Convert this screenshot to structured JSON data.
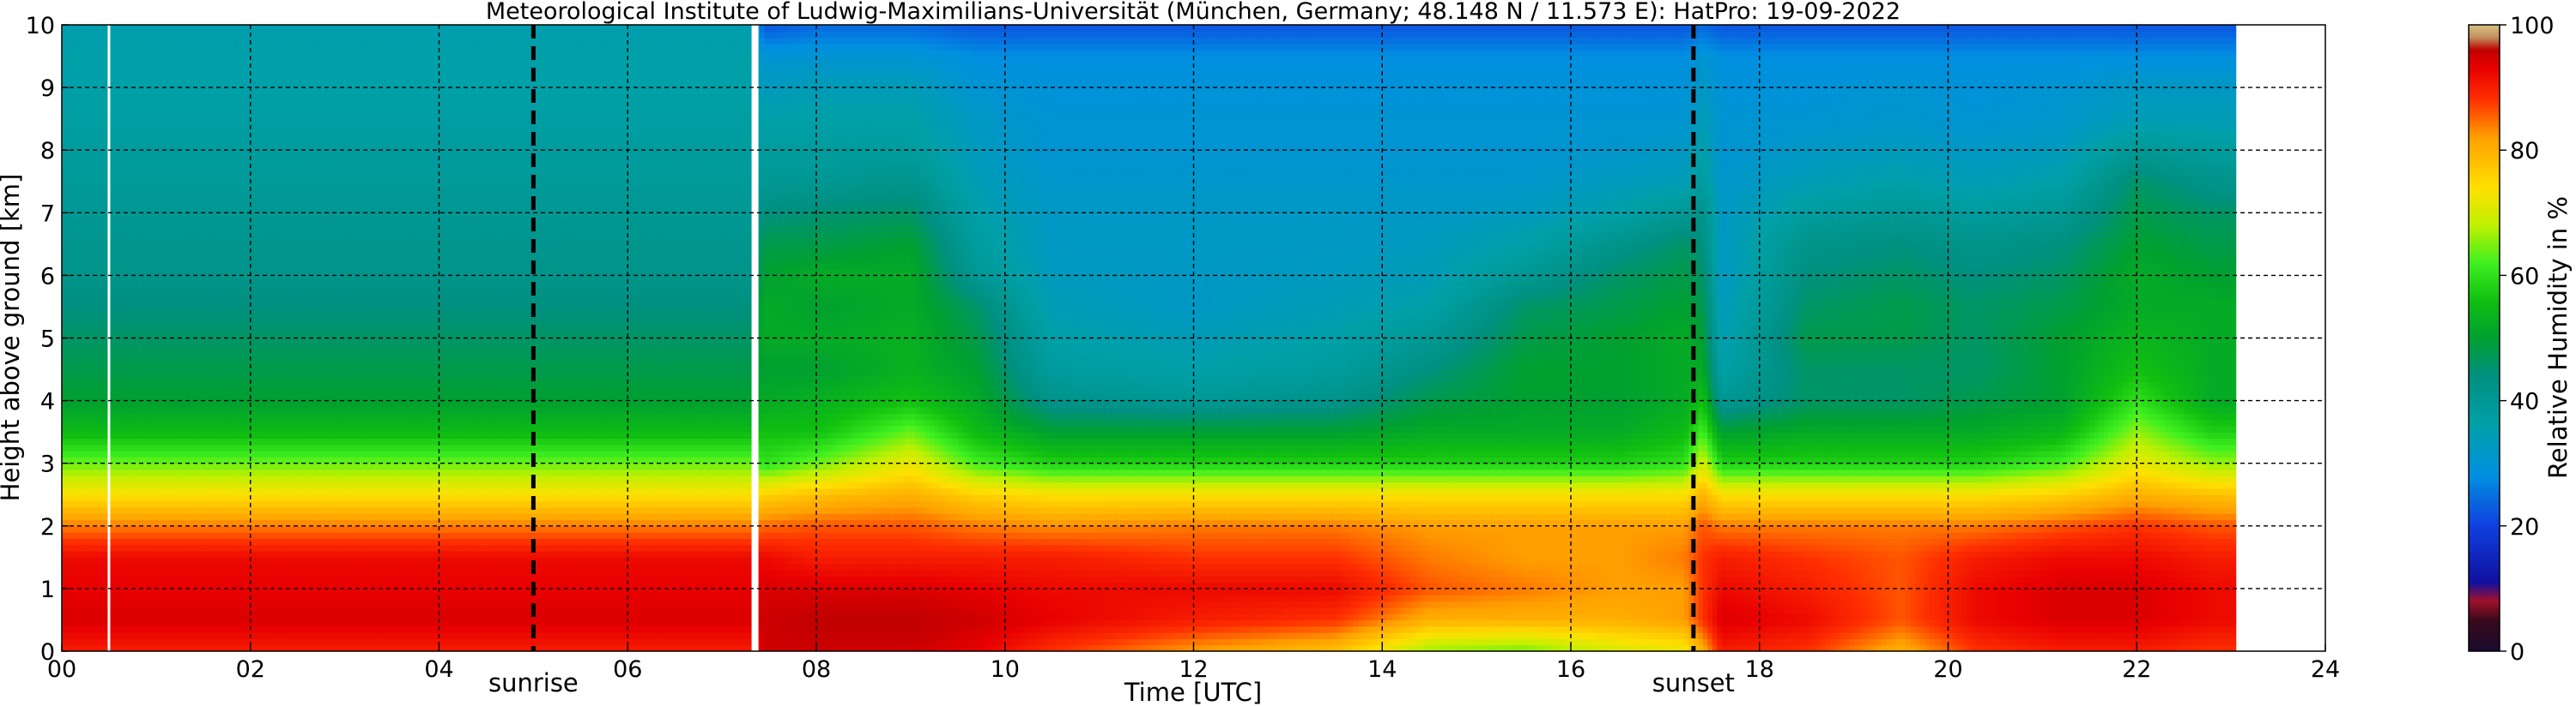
{
  "chart_data": {
    "type": "heatmap",
    "title": "Meteorological Institute of Ludwig-Maximilians-Universität (München, Germany; 48.148 N / 11.573 E):    HatPro: 19-09-2022",
    "xlabel": "Time [UTC]",
    "ylabel": "Height above ground [km]",
    "xlim": [
      0,
      24
    ],
    "ylim": [
      0,
      10
    ],
    "x_ticks": [
      "00",
      "02",
      "04",
      "06",
      "08",
      "10",
      "12",
      "14",
      "16",
      "18",
      "20",
      "22",
      "24"
    ],
    "y_ticks": [
      "0",
      "1",
      "2",
      "3",
      "4",
      "5",
      "6",
      "7",
      "8",
      "9",
      "10"
    ],
    "grid": true,
    "colorbar": {
      "label": "Relative Humidity in %",
      "range": [
        0,
        100
      ],
      "ticks": [
        "0",
        "20",
        "40",
        "60",
        "80",
        "100"
      ],
      "stops": [
        {
          "v": 0,
          "color": "#1a0a2e"
        },
        {
          "v": 5,
          "color": "#3a0a1c"
        },
        {
          "v": 8,
          "color": "#a0102a"
        },
        {
          "v": 11,
          "color": "#1010a0"
        },
        {
          "v": 20,
          "color": "#1040e0"
        },
        {
          "v": 28,
          "color": "#0090e0"
        },
        {
          "v": 36,
          "color": "#00a0a8"
        },
        {
          "v": 44,
          "color": "#009080"
        },
        {
          "v": 50,
          "color": "#00a030"
        },
        {
          "v": 56,
          "color": "#10c010"
        },
        {
          "v": 62,
          "color": "#40f020"
        },
        {
          "v": 68,
          "color": "#c0f000"
        },
        {
          "v": 74,
          "color": "#ffe000"
        },
        {
          "v": 82,
          "color": "#ffa000"
        },
        {
          "v": 88,
          "color": "#ff3000"
        },
        {
          "v": 93,
          "color": "#e80000"
        },
        {
          "v": 96,
          "color": "#c00000"
        },
        {
          "v": 98,
          "color": "#c09060"
        },
        {
          "v": 100,
          "color": "#d8c080"
        }
      ]
    },
    "data_range_hours": [
      0,
      23.05
    ],
    "data_gaps_hours": [
      0.5,
      7.35
    ],
    "profiles": [
      {
        "t": 0.0,
        "rh": [
          90,
          94,
          93,
          92,
          84,
          74,
          64,
          55,
          50,
          48,
          46,
          44,
          42,
          41,
          40,
          39,
          38,
          37,
          36,
          36,
          35
        ]
      },
      {
        "t": 7.3,
        "rh": [
          90,
          94,
          93,
          92,
          84,
          74,
          64,
          55,
          50,
          48,
          46,
          44,
          42,
          41,
          40,
          39,
          38,
          37,
          36,
          36,
          35
        ]
      },
      {
        "t": 7.45,
        "rh": [
          95,
          95,
          94,
          92,
          85,
          76,
          60,
          56,
          52,
          50,
          52,
          52,
          50,
          48,
          44,
          40,
          38,
          36,
          33,
          30,
          22
        ]
      },
      {
        "t": 8.0,
        "rh": [
          95,
          96,
          94,
          90,
          86,
          78,
          64,
          56,
          53,
          50,
          52,
          50,
          52,
          48,
          45,
          40,
          38,
          36,
          34,
          30,
          24
        ]
      },
      {
        "t": 9.0,
        "rh": [
          95,
          96,
          94,
          90,
          86,
          80,
          72,
          64,
          56,
          53,
          53,
          52,
          52,
          50,
          46,
          42,
          38,
          36,
          34,
          30,
          24
        ]
      },
      {
        "t": 9.7,
        "rh": [
          93,
          95,
          93,
          90,
          84,
          76,
          62,
          55,
          52,
          50,
          48,
          46,
          40,
          38,
          36,
          34,
          33,
          32,
          30,
          28,
          22
        ]
      },
      {
        "t": 10.5,
        "rh": [
          88,
          93,
          92,
          90,
          83,
          74,
          58,
          50,
          42,
          38,
          36,
          34,
          33,
          32,
          32,
          31,
          30,
          30,
          29,
          28,
          22
        ]
      },
      {
        "t": 12.0,
        "rh": [
          82,
          90,
          92,
          88,
          84,
          74,
          58,
          50,
          40,
          36,
          34,
          32,
          32,
          32,
          32,
          31,
          30,
          30,
          29,
          28,
          22
        ]
      },
      {
        "t": 13.5,
        "rh": [
          78,
          88,
          92,
          88,
          84,
          74,
          58,
          50,
          42,
          38,
          36,
          34,
          33,
          32,
          32,
          31,
          30,
          30,
          29,
          28,
          22
        ]
      },
      {
        "t": 14.5,
        "rh": [
          66,
          80,
          86,
          84,
          82,
          74,
          58,
          52,
          48,
          44,
          40,
          36,
          34,
          33,
          32,
          31,
          30,
          30,
          29,
          28,
          22
        ]
      },
      {
        "t": 15.5,
        "rh": [
          64,
          80,
          84,
          82,
          82,
          74,
          58,
          52,
          50,
          50,
          48,
          46,
          40,
          36,
          33,
          31,
          30,
          30,
          29,
          28,
          22
        ]
      },
      {
        "t": 16.5,
        "rh": [
          70,
          80,
          82,
          82,
          82,
          74,
          58,
          52,
          50,
          50,
          50,
          48,
          46,
          42,
          36,
          33,
          31,
          30,
          29,
          28,
          22
        ]
      },
      {
        "t": 17.2,
        "rh": [
          72,
          82,
          82,
          84,
          82,
          74,
          60,
          55,
          52,
          52,
          52,
          50,
          48,
          46,
          40,
          34,
          32,
          30,
          29,
          28,
          22
        ]
      },
      {
        "t": 17.4,
        "rh": [
          80,
          88,
          88,
          88,
          86,
          80,
          70,
          62,
          56,
          52,
          50,
          48,
          46,
          44,
          42,
          38,
          36,
          34,
          32,
          30,
          24
        ]
      },
      {
        "t": 17.6,
        "rh": [
          90,
          94,
          92,
          90,
          84,
          74,
          58,
          50,
          40,
          36,
          34,
          33,
          32,
          32,
          32,
          31,
          30,
          30,
          29,
          28,
          22
        ]
      },
      {
        "t": 18.5,
        "rh": [
          88,
          92,
          90,
          88,
          84,
          74,
          58,
          52,
          46,
          46,
          48,
          46,
          44,
          42,
          38,
          34,
          32,
          30,
          29,
          28,
          22
        ]
      },
      {
        "t": 19.5,
        "rh": [
          80,
          86,
          86,
          86,
          84,
          74,
          58,
          52,
          46,
          46,
          48,
          48,
          46,
          44,
          40,
          36,
          33,
          31,
          30,
          28,
          22
        ]
      },
      {
        "t": 20.3,
        "rh": [
          88,
          92,
          92,
          90,
          84,
          74,
          58,
          52,
          48,
          46,
          46,
          46,
          44,
          42,
          38,
          34,
          32,
          30,
          29,
          28,
          22
        ]
      },
      {
        "t": 21.2,
        "rh": [
          90,
          94,
          94,
          92,
          86,
          76,
          62,
          54,
          50,
          50,
          50,
          48,
          46,
          44,
          40,
          36,
          33,
          31,
          30,
          28,
          22
        ]
      },
      {
        "t": 22.0,
        "rh": [
          90,
          94,
          94,
          92,
          88,
          80,
          72,
          66,
          60,
          56,
          54,
          52,
          52,
          50,
          48,
          46,
          40,
          34,
          32,
          28,
          22
        ]
      },
      {
        "t": 22.8,
        "rh": [
          88,
          92,
          92,
          90,
          86,
          78,
          66,
          58,
          52,
          52,
          52,
          52,
          50,
          48,
          46,
          42,
          38,
          34,
          32,
          28,
          22
        ]
      },
      {
        "t": 23.05,
        "rh": [
          88,
          92,
          92,
          90,
          86,
          78,
          66,
          58,
          52,
          52,
          52,
          52,
          50,
          48,
          46,
          42,
          38,
          34,
          32,
          28,
          22
        ]
      }
    ],
    "annotations": [
      {
        "label": "sunrise",
        "x": 5.0
      },
      {
        "label": "sunset",
        "x": 17.3
      }
    ]
  }
}
